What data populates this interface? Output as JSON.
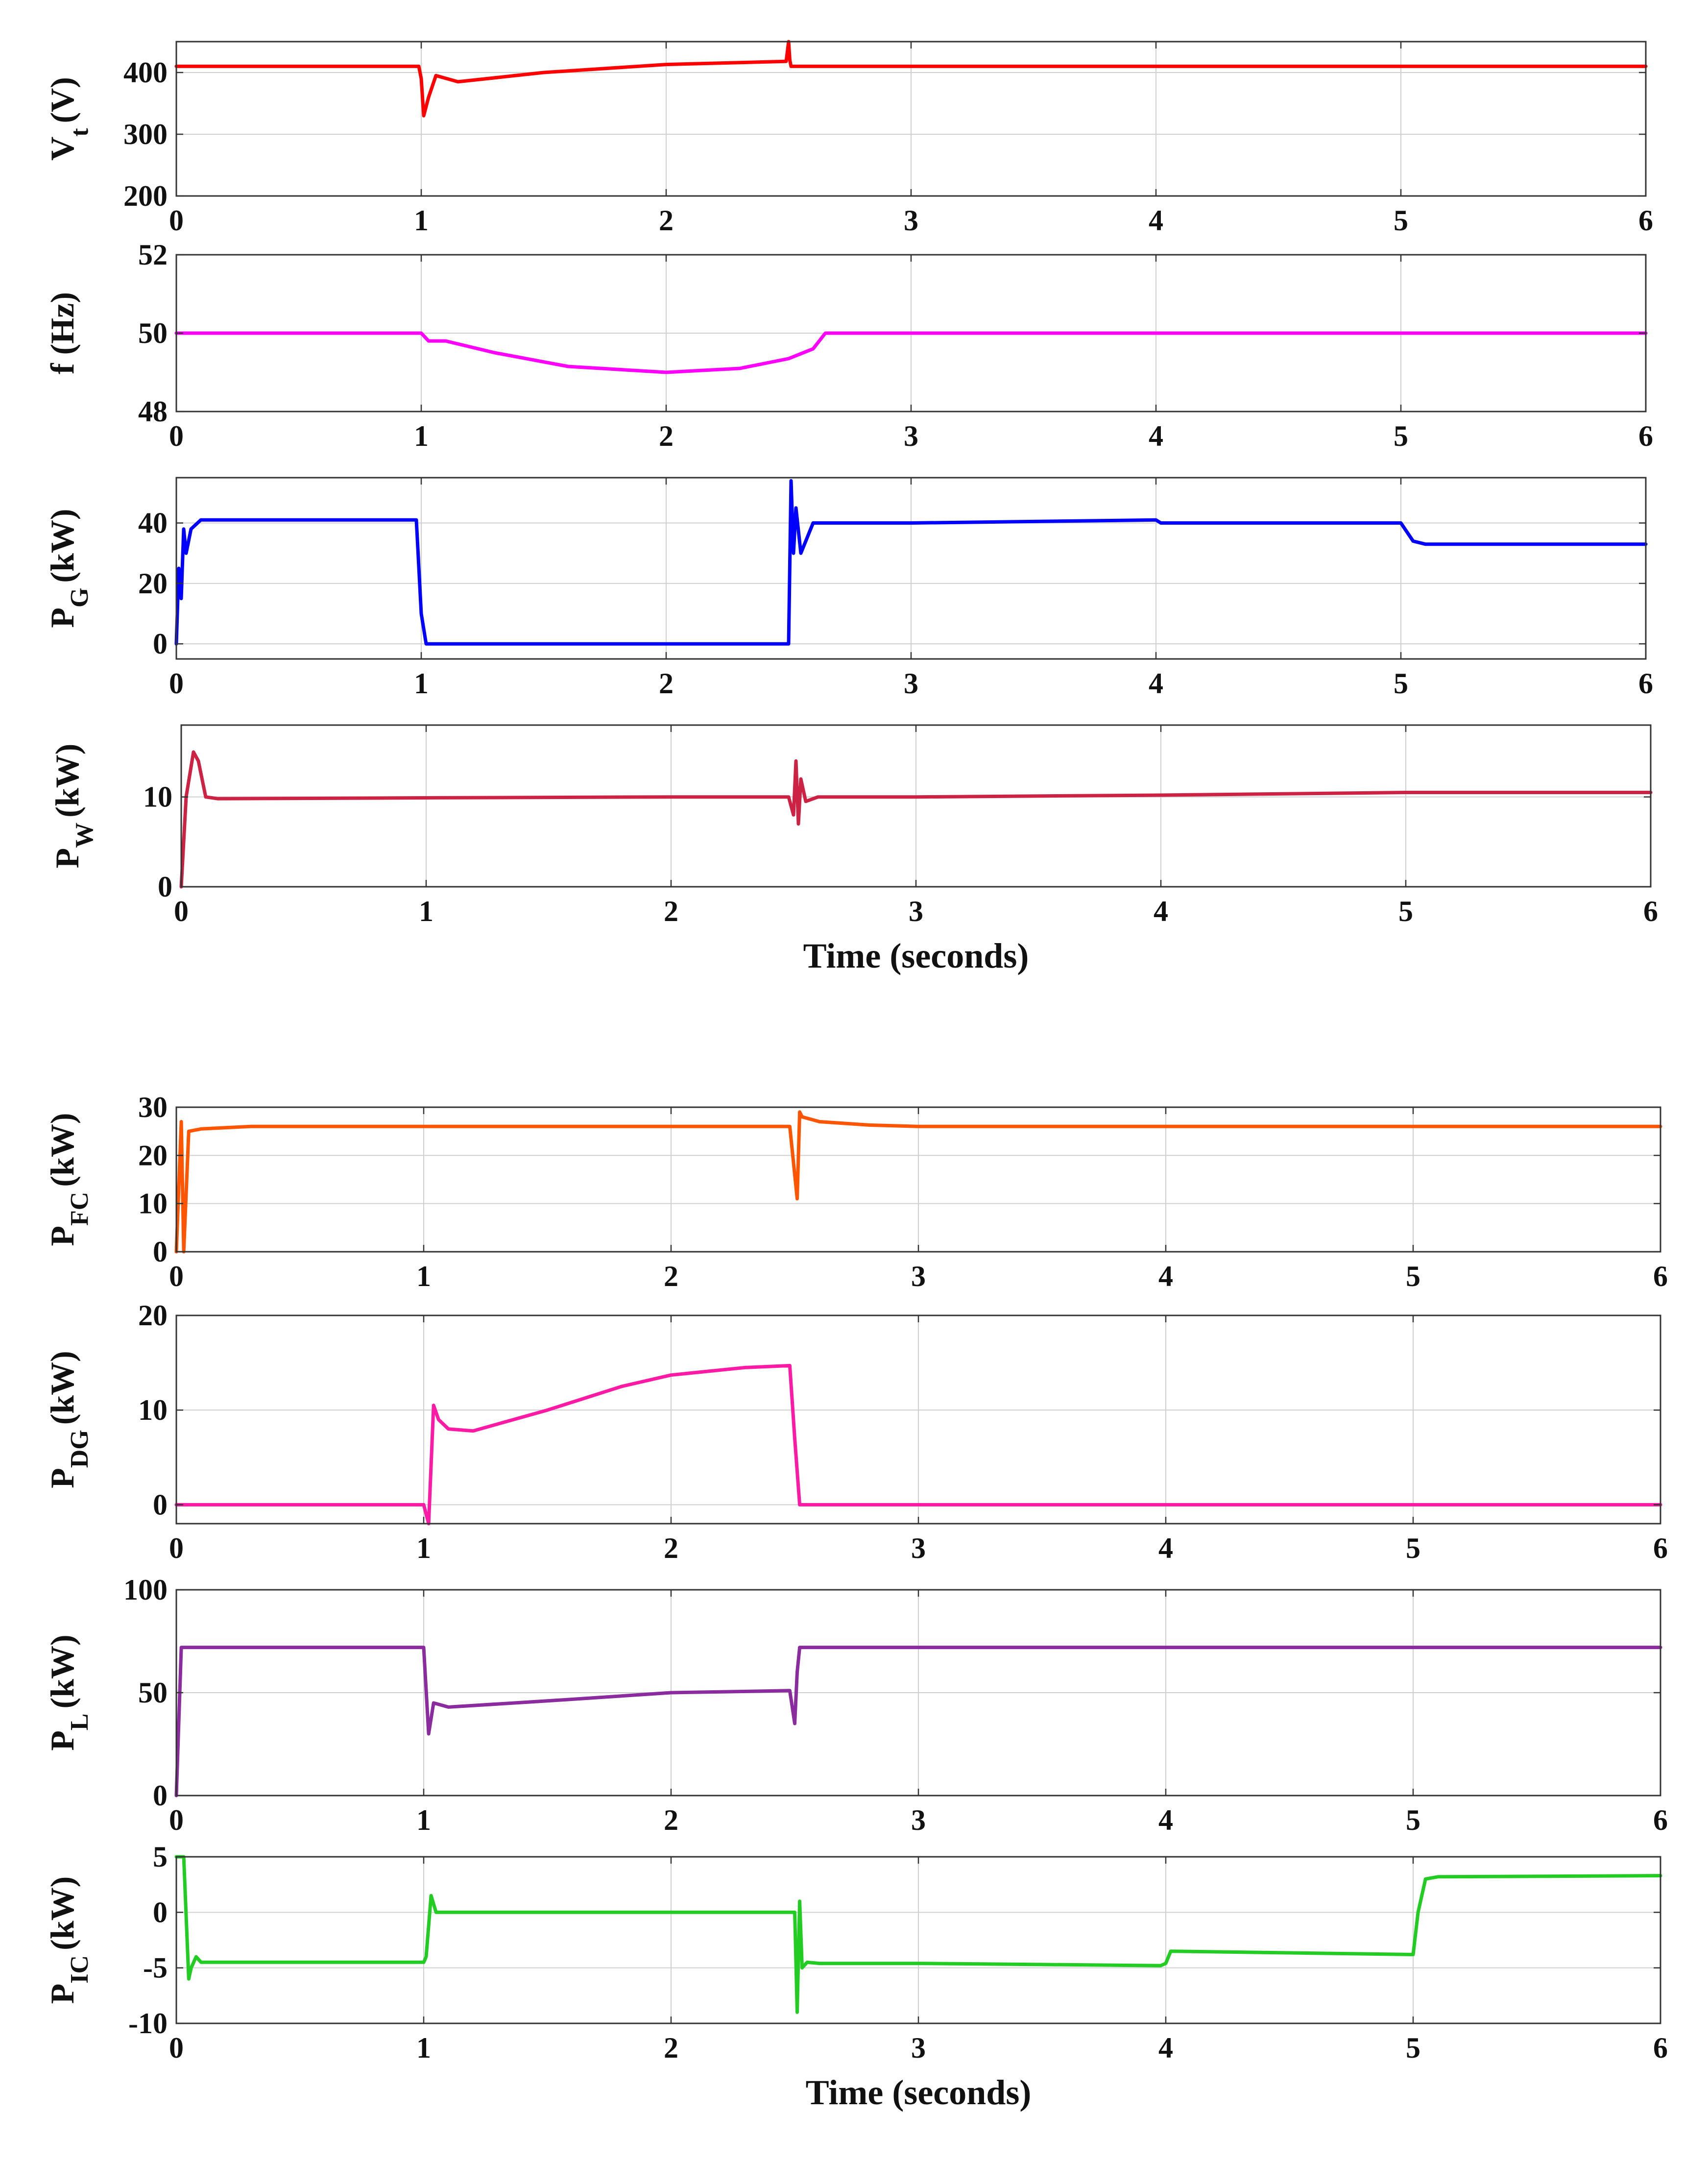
{
  "chart_data": [
    {
      "type": "line",
      "ylabel": "V",
      "ylabel_sub": "t",
      "ylabel_unit": "(V)",
      "xlim": [
        0,
        6
      ],
      "ylim": [
        200,
        450
      ],
      "xticks": [
        "0",
        "1",
        "2",
        "3",
        "4",
        "5",
        "6"
      ],
      "yticks": [
        "200",
        "300",
        "400"
      ],
      "ytick_values": [
        200,
        300,
        400
      ],
      "color": "#ff0000",
      "xlabel": "",
      "series": [
        {
          "name": "V_t",
          "x": [
            0,
            0.99,
            1.0,
            1.01,
            1.03,
            1.06,
            1.15,
            1.5,
            2.0,
            2.49,
            2.5,
            2.505,
            2.51,
            2.52,
            3,
            4,
            5,
            6
          ],
          "y": [
            410,
            410,
            390,
            330,
            360,
            395,
            385,
            400,
            413,
            418,
            450,
            420,
            410,
            410,
            410,
            410,
            410,
            410
          ]
        }
      ]
    },
    {
      "type": "line",
      "ylabel": "f (Hz)",
      "ylabel_sub": "",
      "ylabel_unit": "",
      "xlim": [
        0,
        6
      ],
      "ylim": [
        48,
        52
      ],
      "xticks": [
        "0",
        "1",
        "2",
        "3",
        "4",
        "5",
        "6"
      ],
      "yticks": [
        "48",
        "50",
        "52"
      ],
      "ytick_values": [
        48,
        50,
        52
      ],
      "color": "#ff00ff",
      "xlabel": "",
      "series": [
        {
          "name": "f",
          "x": [
            0,
            1.0,
            1.03,
            1.1,
            1.3,
            1.6,
            2.0,
            2.3,
            2.5,
            2.6,
            2.65,
            3,
            4,
            5,
            6
          ],
          "y": [
            50,
            50,
            49.8,
            49.8,
            49.5,
            49.15,
            49.0,
            49.1,
            49.35,
            49.6,
            50,
            50,
            50,
            50,
            50
          ]
        }
      ]
    },
    {
      "type": "line",
      "ylabel": "P",
      "ylabel_sub": "G",
      "ylabel_unit": "(kW)",
      "xlim": [
        0,
        6
      ],
      "ylim": [
        -5,
        55
      ],
      "xticks": [
        "0",
        "1",
        "2",
        "3",
        "4",
        "5",
        "6"
      ],
      "yticks": [
        "0",
        "20",
        "40"
      ],
      "ytick_values": [
        0,
        20,
        40
      ],
      "color": "#0000ff",
      "xlabel": "",
      "series": [
        {
          "name": "P_G",
          "x": [
            0,
            0.01,
            0.02,
            0.03,
            0.04,
            0.06,
            0.1,
            0.2,
            0.98,
            1.0,
            1.02,
            2.5,
            2.51,
            2.52,
            2.53,
            2.55,
            2.6,
            3,
            4,
            4.02,
            5,
            5.05,
            5.1,
            6
          ],
          "y": [
            0,
            25,
            15,
            38,
            30,
            38,
            41,
            41,
            41,
            10,
            0,
            0,
            54,
            30,
            45,
            30,
            40,
            40,
            41,
            40,
            40,
            34,
            33,
            33
          ]
        }
      ]
    },
    {
      "type": "line",
      "ylabel": "P",
      "ylabel_sub": "W",
      "ylabel_unit": "(kW)",
      "xlim": [
        0,
        6
      ],
      "ylim": [
        0,
        18
      ],
      "xticks": [
        "0",
        "1",
        "2",
        "3",
        "4",
        "5",
        "6"
      ],
      "yticks": [
        "0",
        "10"
      ],
      "ytick_values": [
        0,
        10
      ],
      "color": "#cc2244",
      "xlabel": "Time (seconds)",
      "series": [
        {
          "name": "P_W",
          "x": [
            0,
            0.02,
            0.05,
            0.07,
            0.1,
            0.15,
            1,
            2,
            2.48,
            2.5,
            2.51,
            2.52,
            2.53,
            2.55,
            2.6,
            3,
            4,
            5,
            6
          ],
          "y": [
            0,
            10,
            15,
            14,
            10,
            9.8,
            9.9,
            10,
            10,
            8,
            14,
            7,
            12,
            9.5,
            10,
            10,
            10.2,
            10.5,
            10.5
          ]
        }
      ]
    },
    {
      "type": "line",
      "ylabel": "P",
      "ylabel_sub": "FC",
      "ylabel_unit": "(kW)",
      "xlim": [
        0,
        6
      ],
      "ylim": [
        0,
        30
      ],
      "xticks": [
        "0",
        "1",
        "2",
        "3",
        "4",
        "5",
        "6"
      ],
      "yticks": [
        "0",
        "10",
        "20",
        "30"
      ],
      "ytick_values": [
        0,
        10,
        20,
        30
      ],
      "color": "#ff5500",
      "xlabel": "",
      "series": [
        {
          "name": "P_FC",
          "x": [
            0,
            0.02,
            0.03,
            0.05,
            0.1,
            0.3,
            1,
            2,
            2.48,
            2.5,
            2.51,
            2.52,
            2.53,
            2.6,
            2.8,
            3,
            4,
            5,
            6
          ],
          "y": [
            0,
            27,
            0,
            25,
            25.5,
            26,
            26,
            26,
            26,
            16,
            11,
            29,
            28,
            27,
            26.3,
            26,
            26,
            26,
            26
          ]
        }
      ]
    },
    {
      "type": "line",
      "ylabel": "P",
      "ylabel_sub": "DG",
      "ylabel_unit": "(kW)",
      "xlim": [
        0,
        6
      ],
      "ylim": [
        -2,
        20
      ],
      "xticks": [
        "0",
        "1",
        "2",
        "3",
        "4",
        "5",
        "6"
      ],
      "yticks": [
        "0",
        "10",
        "20"
      ],
      "ytick_values": [
        0,
        10,
        20
      ],
      "color": "#ff1aa6",
      "xlabel": "",
      "series": [
        {
          "name": "P_DG",
          "x": [
            0,
            1.0,
            1.02,
            1.04,
            1.06,
            1.1,
            1.2,
            1.5,
            1.8,
            2.0,
            2.3,
            2.48,
            2.5,
            2.52,
            3,
            4,
            5,
            6
          ],
          "y": [
            0,
            0,
            -2,
            10.5,
            9,
            8,
            7.8,
            10,
            12.5,
            13.7,
            14.5,
            14.7,
            7,
            0,
            0,
            0,
            0,
            0
          ]
        }
      ]
    },
    {
      "type": "line",
      "ylabel": "P",
      "ylabel_sub": "L",
      "ylabel_unit": "(kW)",
      "xlim": [
        0,
        6
      ],
      "ylim": [
        0,
        100
      ],
      "xticks": [
        "0",
        "1",
        "2",
        "3",
        "4",
        "5",
        "6"
      ],
      "yticks": [
        "0",
        "50",
        "100"
      ],
      "ytick_values": [
        0,
        50,
        100
      ],
      "color": "#8a2b9e",
      "xlabel": "",
      "series": [
        {
          "name": "P_L",
          "x": [
            0,
            0.02,
            0.03,
            1.0,
            1.02,
            1.04,
            1.1,
            1.5,
            2.0,
            2.48,
            2.5,
            2.51,
            2.52,
            3,
            4,
            5,
            6
          ],
          "y": [
            0,
            72,
            72,
            72,
            30,
            45,
            43,
            46,
            50,
            51,
            35,
            60,
            72,
            72,
            72,
            72,
            72
          ]
        }
      ]
    },
    {
      "type": "line",
      "ylabel": "P",
      "ylabel_sub": "IC",
      "ylabel_unit": "(kW)",
      "xlim": [
        0,
        6
      ],
      "ylim": [
        -10,
        5
      ],
      "xticks": [
        "0",
        "1",
        "2",
        "3",
        "4",
        "5",
        "6"
      ],
      "yticks": [
        "-10",
        "-5",
        "0",
        "5"
      ],
      "ytick_values": [
        -10,
        -5,
        0,
        5
      ],
      "color": "#22cc22",
      "xlabel": "Time (seconds)",
      "series": [
        {
          "name": "P_IC",
          "x": [
            0,
            0.03,
            0.05,
            0.06,
            0.08,
            0.1,
            0.2,
            1.0,
            1.01,
            1.03,
            1.05,
            2.5,
            2.51,
            2.52,
            2.53,
            2.55,
            2.6,
            3,
            3.5,
            3.98,
            4.0,
            4.02,
            5.0,
            5.02,
            5.05,
            5.1,
            6
          ],
          "y": [
            5,
            5,
            -6,
            -5,
            -4,
            -4.5,
            -4.5,
            -4.5,
            -4,
            1.5,
            0,
            0,
            -9,
            1,
            -5,
            -4.5,
            -4.6,
            -4.6,
            -4.7,
            -4.8,
            -4.6,
            -3.5,
            -3.8,
            0,
            3,
            3.2,
            3.3
          ]
        }
      ]
    }
  ]
}
